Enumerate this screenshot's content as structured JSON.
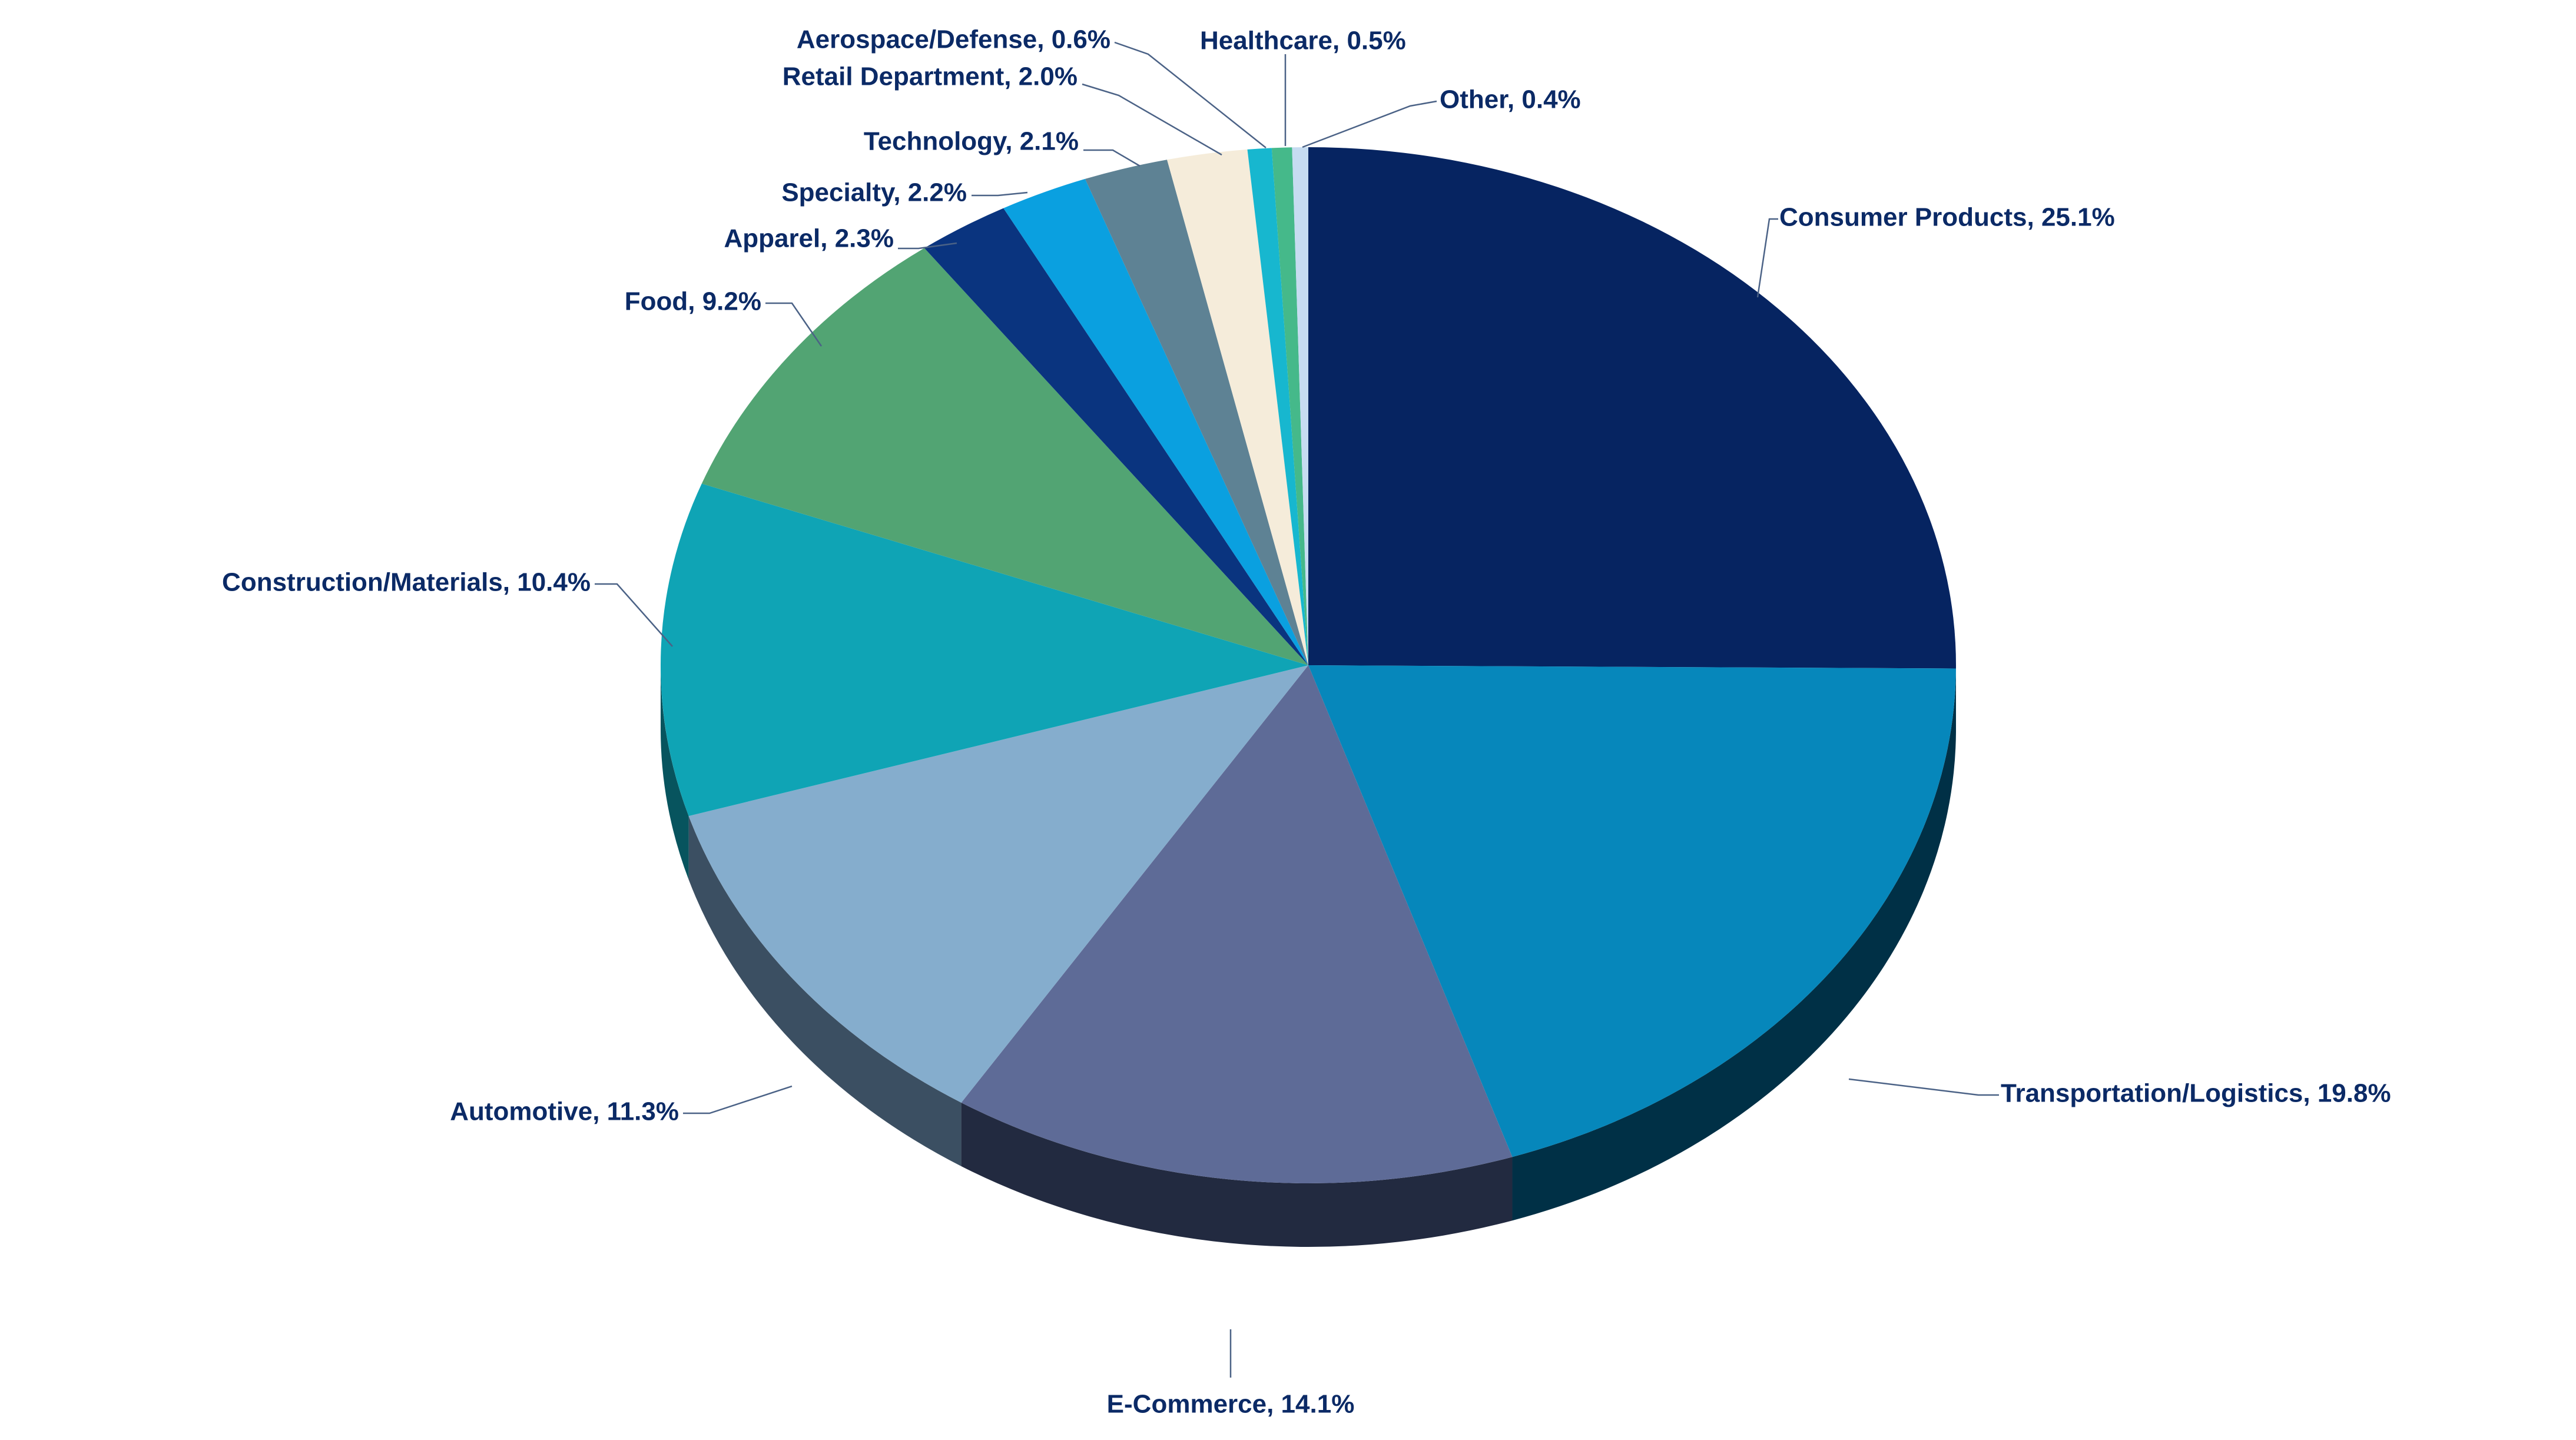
{
  "chart_data": {
    "type": "pie",
    "title": "",
    "label_color": "#0b2a66",
    "leader_color": "#4b6286",
    "slices": [
      {
        "label": "Consumer Products, 25.1%",
        "category": "Consumer Products",
        "value": 25.1,
        "color": "#062461",
        "side_color": "#031338"
      },
      {
        "label": "Transportation/Logistics, 19.8%",
        "category": "Transportation/Logistics",
        "value": 19.8,
        "color": "#0687bb",
        "side_color": "#003046"
      },
      {
        "label": "E-Commerce, 14.1%",
        "category": "E-Commerce",
        "value": 14.1,
        "color": "#5e6b97",
        "side_color": "#222a40"
      },
      {
        "label": "Automotive, 11.3%",
        "category": "Automotive",
        "value": 11.3,
        "color": "#85adcd",
        "side_color": "#3b4f62"
      },
      {
        "label": "Construction/Materials, 10.4%",
        "category": "Construction/Materials",
        "value": 10.4,
        "color": "#0fa4b5",
        "side_color": "#07545e"
      },
      {
        "label": "Food, 9.2%",
        "category": "Food",
        "value": 9.2,
        "color": "#52a473",
        "side_color": "#2a5a3c"
      },
      {
        "label": "Apparel, 2.3%",
        "category": "Apparel",
        "value": 2.3,
        "color": "#0a347f",
        "side_color": "#051a42"
      },
      {
        "label": "Specialty, 2.2%",
        "category": "Specialty",
        "value": 2.2,
        "color": "#0aa0e0",
        "side_color": "#055274"
      },
      {
        "label": "Technology, 2.1%",
        "category": "Technology",
        "value": 2.1,
        "color": "#5e8294",
        "side_color": "#2f424c"
      },
      {
        "label": "Retail Department, 2.0%",
        "category": "Retail Department",
        "value": 2.0,
        "color": "#f5ecda",
        "side_color": "#7e786e"
      },
      {
        "label": "Aerospace/Defense, 0.6%",
        "category": "Aerospace/Defense",
        "value": 0.6,
        "color": "#17b7cf",
        "side_color": "#0b5d6a"
      },
      {
        "label": "Healthcare, 0.5%",
        "category": "Healthcare",
        "value": 0.5,
        "color": "#45b98a",
        "side_color": "#235e46"
      },
      {
        "label": "Other, 0.4%",
        "category": "Other",
        "value": 0.4,
        "color": "#c6dcf1",
        "side_color": "#65707b"
      }
    ]
  }
}
